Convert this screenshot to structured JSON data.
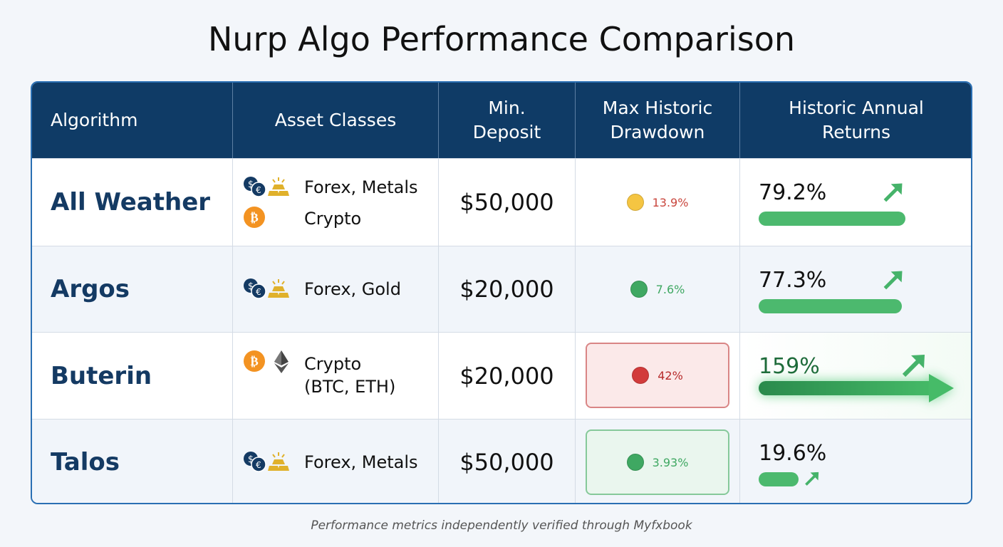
{
  "title": "Nurp Algo Performance Comparison",
  "headers": [
    "Algorithm",
    "Asset Classes",
    "Min. Deposit",
    "Max Historic Drawdown",
    "Historic Annual Returns"
  ],
  "rows": [
    {
      "name": "All Weather",
      "assets": [
        "Forex, Metals",
        "Crypto"
      ],
      "icons": [
        "forex-icon",
        "gold-bars-icon",
        "bitcoin-icon"
      ],
      "deposit": "$50,000",
      "drawdown": "13.9%",
      "dd_status": "yellow",
      "returns": "79.2%",
      "returns_pct": 79.2
    },
    {
      "name": "Argos",
      "assets": [
        "Forex, Gold"
      ],
      "icons": [
        "forex-icon",
        "gold-bars-icon"
      ],
      "deposit": "$20,000",
      "drawdown": "7.6%",
      "dd_status": "green",
      "returns": "77.3%",
      "returns_pct": 77.3
    },
    {
      "name": "Buterin",
      "assets": [
        "Crypto",
        "(BTC, ETH)"
      ],
      "icons": [
        "bitcoin-icon",
        "ethereum-icon"
      ],
      "deposit": "$20,000",
      "drawdown": "42%",
      "dd_status": "red-highlight",
      "returns": "159%",
      "returns_pct": 159
    },
    {
      "name": "Talos",
      "assets": [
        "Forex, Metals"
      ],
      "icons": [
        "forex-icon",
        "gold-bars-icon"
      ],
      "deposit": "$50,000",
      "drawdown": "3.93%",
      "dd_status": "green-highlight",
      "returns": "19.6%",
      "returns_pct": 19.6
    }
  ],
  "colors": {
    "header": "#0f3b66",
    "green": "#3fa862",
    "red": "#b72b2b",
    "yellow": "#f5c542",
    "name": "#143a63"
  },
  "footer": "Performance metrics independently verified through Myfxbook"
}
